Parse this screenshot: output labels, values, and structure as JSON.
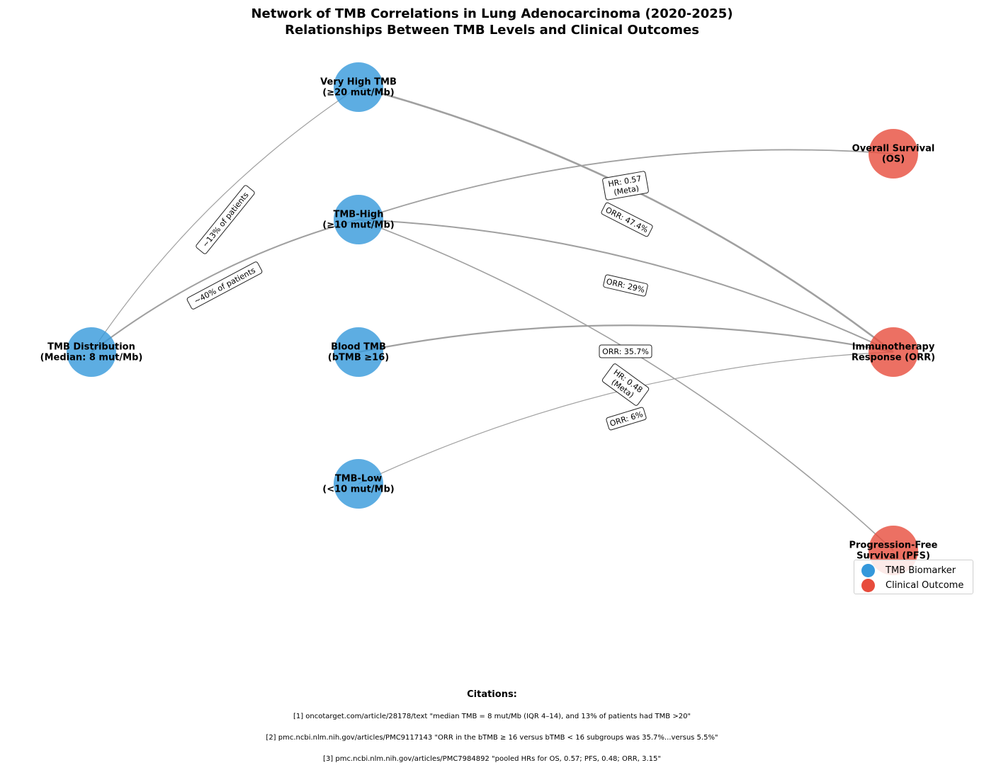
{
  "title_lines": [
    "Network of TMB Correlations in Lung Adenocarcinoma (2020-2025)",
    "Relationships Between TMB Levels and Clinical Outcomes"
  ],
  "colors": {
    "biomarker": "#3498db",
    "outcome": "#e74c3c",
    "edge": "#a0a0a0"
  },
  "nodes": [
    {
      "id": "dist",
      "type": "biomarker",
      "lines": [
        "TMB Distribution",
        "(Median: 8 mut/Mb)"
      ]
    },
    {
      "id": "vhigh",
      "type": "biomarker",
      "lines": [
        "Very High TMB",
        "(≥20 mut/Mb)"
      ]
    },
    {
      "id": "high",
      "type": "biomarker",
      "lines": [
        "TMB-High",
        "(≥10 mut/Mb)"
      ]
    },
    {
      "id": "blood",
      "type": "biomarker",
      "lines": [
        "Blood TMB",
        "(bTMB ≥16)"
      ]
    },
    {
      "id": "low",
      "type": "biomarker",
      "lines": [
        "TMB-Low",
        "(<10 mut/Mb)"
      ]
    },
    {
      "id": "os",
      "type": "outcome",
      "lines": [
        "Overall Survival",
        "(OS)"
      ]
    },
    {
      "id": "orr",
      "type": "outcome",
      "lines": [
        "Immunotherapy",
        "Response (ORR)"
      ]
    },
    {
      "id": "pfs",
      "type": "outcome",
      "lines": [
        "Progression-Free",
        "Survival (PFS)"
      ]
    }
  ],
  "edges": [
    {
      "from": "dist",
      "to": "vhigh",
      "label": [
        "~13% of patients"
      ]
    },
    {
      "from": "dist",
      "to": "high",
      "label": [
        "~40% of patients"
      ]
    },
    {
      "from": "high",
      "to": "os",
      "label": [
        "HR: 0.57",
        "(Meta)"
      ]
    },
    {
      "from": "vhigh",
      "to": "orr",
      "label": [
        "ORR: 47.4%"
      ]
    },
    {
      "from": "high",
      "to": "orr",
      "label": [
        "ORR: 29%"
      ]
    },
    {
      "from": "blood",
      "to": "orr",
      "label": [
        "ORR: 35.7%"
      ]
    },
    {
      "from": "high",
      "to": "pfs",
      "label": [
        "HR: 0.48",
        "(Meta)"
      ]
    },
    {
      "from": "low",
      "to": "orr",
      "label": [
        "ORR: 6%"
      ]
    }
  ],
  "legend": {
    "biomarker": "TMB Biomarker",
    "outcome": "Clinical Outcome"
  },
  "citations": {
    "heading": "Citations:",
    "items": [
      "[1] oncotarget.com/article/28178/text \"median TMB = 8 mut/Mb (IQR 4–14), and 13% of patients had TMB >20\"",
      "[2] pmc.ncbi.nlm.nih.gov/articles/PMC9117143 \"ORR in the bTMB ≥ 16 versus bTMB < 16 subgroups was 35.7%...versus 5.5%\"",
      "[3] pmc.ncbi.nlm.nih.gov/articles/PMC7984892 \"pooled HRs for OS, 0.57; PFS, 0.48; ORR, 3.15\""
    ]
  }
}
